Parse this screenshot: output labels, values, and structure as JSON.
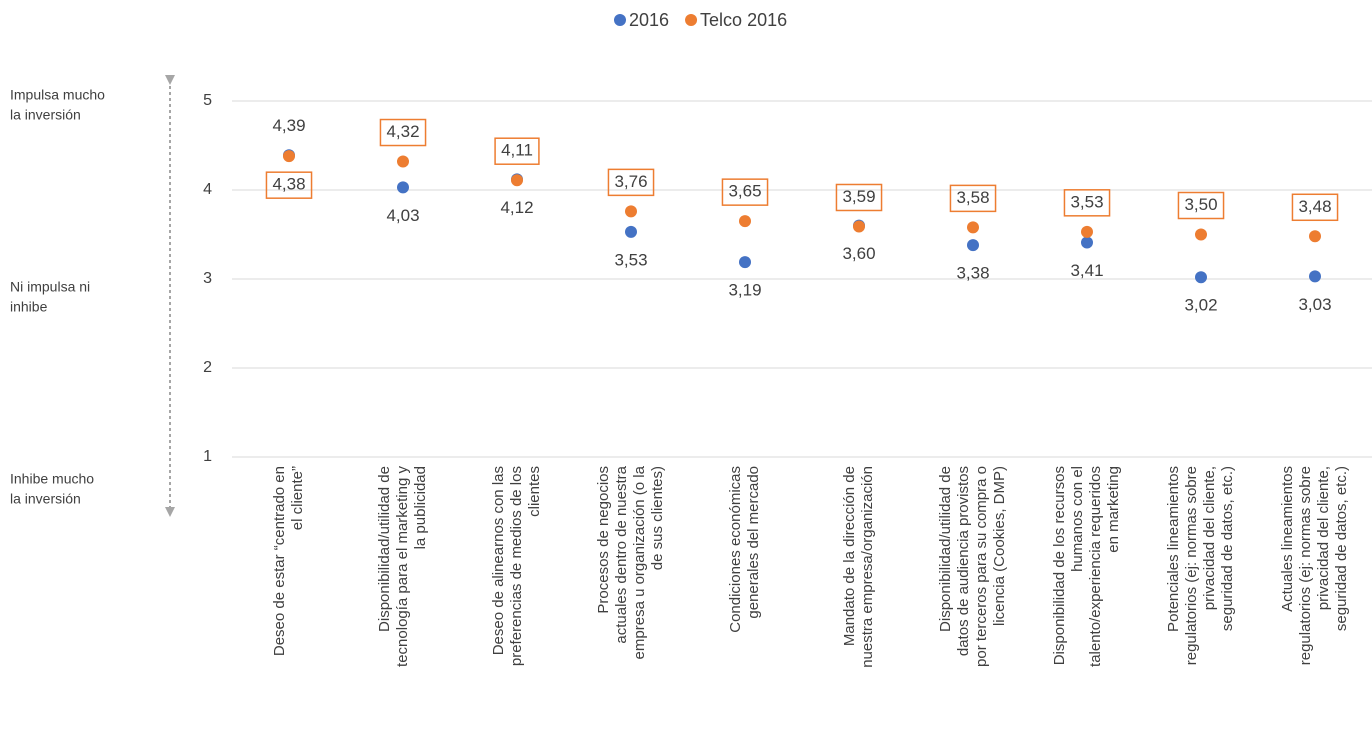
{
  "chart_data": {
    "type": "dot",
    "categories": [
      [
        "Deseo de estar “centrado en",
        "el cliente”"
      ],
      [
        "Disponibilidad/utilidad de",
        "tecnología para el marketing y",
        "la publicidad"
      ],
      [
        "Deseo de alinearnos con las",
        "preferencias de medios de los",
        "clientes"
      ],
      [
        "Procesos de negocios",
        "actuales dentro de nuestra",
        "empresa u organización (o la",
        "de sus clientes)"
      ],
      [
        "Condiciones económicas",
        "generales del mercado"
      ],
      [
        "Mandato de la dirección de",
        "nuestra empresa/organización"
      ],
      [
        "Disponibilidad/utilidad de",
        "datos de audiencia provistos",
        "por terceros para su compra o",
        "licencia (Cookies, DMP)"
      ],
      [
        "Disponibilidad de los recursos",
        "humanos con el",
        "talento/experiencia requeridos",
        "en marketing"
      ],
      [
        "Potenciales lineamientos",
        "regulatorios (ej: normas sobre",
        "privacidad del cliente,",
        "seguridad de datos, etc.)"
      ],
      [
        "Actuales lineamientos",
        "regulatorios (ej: normas sobre",
        "privacidad del cliente,",
        "seguridad de datos, etc.)"
      ]
    ],
    "series": [
      {
        "name": "2016",
        "color": "#4472c4",
        "values": [
          4.39,
          4.03,
          4.12,
          3.53,
          3.19,
          3.6,
          3.38,
          3.41,
          3.02,
          3.03
        ],
        "value_labels": [
          "4,39",
          "4,03",
          "4,12",
          "3,53",
          "3,19",
          "3,60",
          "3,38",
          "3,41",
          "3,02",
          "3,03"
        ]
      },
      {
        "name": "Telco 2016",
        "color": "#ed7d31",
        "values": [
          4.38,
          4.32,
          4.11,
          3.76,
          3.65,
          3.59,
          3.58,
          3.53,
          3.5,
          3.48
        ],
        "value_labels": [
          "4,38",
          "4,32",
          "4,11",
          "3,76",
          "3,65",
          "3,59",
          "3,58",
          "3,53",
          "3,50",
          "3,48"
        ]
      }
    ],
    "annotations": [
      [
        "Impulsa mucho",
        "la inversión"
      ],
      [
        "Ni impulsa ni",
        "inhibe"
      ],
      [
        "Inhibe mucho",
        "la inversión"
      ]
    ],
    "ylim": [
      1,
      5
    ],
    "yticks": [
      1,
      2,
      3,
      4,
      5
    ],
    "grid": true,
    "legend": "top"
  }
}
